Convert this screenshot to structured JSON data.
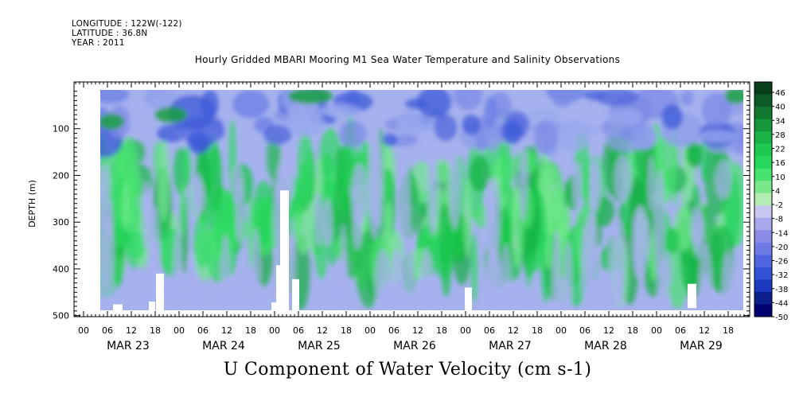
{
  "header": {
    "longitude": "LONGITUDE : 122W(-122)",
    "latitude": "LATITUDE : 36.8N",
    "year": "YEAR : 2011"
  },
  "chart_data": {
    "type": "heatmap",
    "title": "Hourly Gridded MBARI Mooring M1 Sea Water Temperature and Salinity Observations",
    "variable_label": "U Component of Water Velocity (cm s-1)",
    "ylabel": "DEPTH (m)",
    "ylim": [
      500,
      0
    ],
    "yticks": [
      100,
      200,
      300,
      400,
      500
    ],
    "x_hours": [
      0,
      6,
      12,
      18
    ],
    "days": [
      "MAR 23",
      "MAR 24",
      "MAR 25",
      "MAR 26",
      "MAR 27",
      "MAR 28",
      "MAR 29"
    ],
    "colorbar": {
      "labels": [
        46,
        40,
        34,
        28,
        22,
        16,
        10,
        4,
        -2,
        -8,
        -14,
        -20,
        -26,
        -32,
        -38,
        -44,
        -50
      ],
      "colors": [
        "#0a3d1a",
        "#0e5a26",
        "#117830",
        "#15963a",
        "#19b246",
        "#1fc84e",
        "#28d85a",
        "#46e46c",
        "#7ae88a",
        "#b4ecb4",
        "#c8c8f0",
        "#a8a8ee",
        "#8c8ce8",
        "#6e7ae6",
        "#4f66e0",
        "#3452d4",
        "#1c3ac0",
        "#0a1e8c",
        "#000070"
      ]
    },
    "grid": false
  }
}
